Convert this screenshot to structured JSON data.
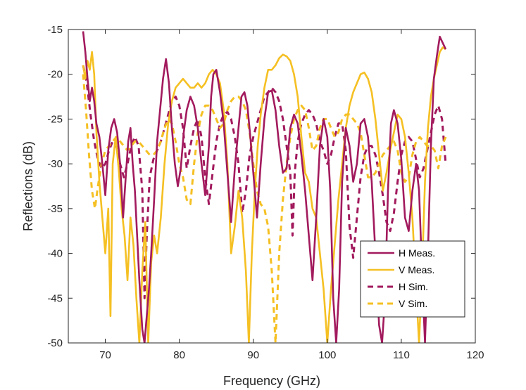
{
  "chart_data": {
    "type": "line",
    "title": "",
    "xlabel": "Frequency (GHz)",
    "ylabel": "Reflections (dB)",
    "xlim": [
      65,
      120
    ],
    "ylim": [
      -50,
      -15
    ],
    "xticks": [
      70,
      80,
      90,
      100,
      110,
      120
    ],
    "yticks": [
      -15,
      -20,
      -25,
      -30,
      -35,
      -40,
      -45,
      -50
    ],
    "grid": false,
    "legend_position": "bottom-right",
    "series": [
      {
        "name": "H Meas.",
        "color": "#a21a5d",
        "style": "solid",
        "x": [
          67.0,
          67.3,
          67.6,
          67.9,
          68.2,
          68.5,
          68.8,
          69.2,
          69.6,
          70.0,
          70.4,
          70.8,
          71.2,
          71.6,
          72.0,
          72.4,
          72.8,
          73.1,
          73.4,
          73.7,
          74.0,
          74.3,
          74.6,
          75.0,
          75.3,
          75.6,
          75.9,
          76.2,
          76.6,
          77.0,
          77.4,
          77.8,
          78.2,
          78.6,
          79.0,
          79.4,
          79.8,
          80.2,
          80.6,
          81.0,
          81.5,
          82.0,
          82.5,
          83.0,
          83.5,
          84.0,
          84.3,
          84.6,
          85.0,
          85.5,
          86.0,
          86.5,
          87.0,
          87.5,
          88.0,
          88.4,
          88.8,
          89.2,
          89.6,
          90.0,
          90.5,
          91.0,
          91.5,
          92.0,
          92.5,
          93.0,
          93.5,
          94.0,
          94.5,
          95.0,
          95.5,
          96.0,
          96.5,
          97.0,
          97.5,
          98.0,
          98.5,
          99.0,
          99.5,
          100.0,
          100.4,
          100.8,
          101.2,
          101.6,
          102.0,
          102.5,
          103.0,
          103.5,
          104.0,
          104.5,
          105.0,
          105.5,
          106.0,
          106.5,
          107.0,
          107.4,
          107.8,
          108.2,
          108.6,
          109.0,
          109.5,
          110.0,
          110.5,
          111.0,
          111.5,
          112.0,
          112.4,
          112.8,
          113.2,
          113.6,
          114.0,
          114.4,
          114.8,
          115.2,
          115.6,
          116.0
        ],
        "y": [
          -15.2,
          -17.5,
          -20.5,
          -23.0,
          -21.5,
          -23.0,
          -25.5,
          -27.0,
          -30.0,
          -33.5,
          -28.5,
          -26.0,
          -25.0,
          -26.5,
          -30.0,
          -36.0,
          -31.0,
          -27.5,
          -26.0,
          -30.0,
          -33.0,
          -38.0,
          -43.0,
          -48.5,
          -50.0,
          -47.0,
          -44.0,
          -40.0,
          -34.0,
          -27.5,
          -24.0,
          -20.5,
          -18.3,
          -21.0,
          -26.0,
          -30.0,
          -32.5,
          -30.5,
          -26.5,
          -24.0,
          -22.5,
          -23.5,
          -26.0,
          -30.0,
          -33.5,
          -28.0,
          -22.5,
          -20.0,
          -19.5,
          -22.0,
          -25.5,
          -31.0,
          -36.5,
          -30.5,
          -26.0,
          -22.5,
          -22.0,
          -23.5,
          -27.0,
          -31.0,
          -36.0,
          -30.0,
          -25.0,
          -22.0,
          -21.8,
          -24.0,
          -28.0,
          -31.0,
          -30.5,
          -26.0,
          -24.5,
          -25.5,
          -29.0,
          -33.0,
          -38.0,
          -43.0,
          -36.0,
          -28.0,
          -25.0,
          -27.0,
          -33.0,
          -45.0,
          -50.0,
          -44.0,
          -32.0,
          -26.0,
          -28.0,
          -32.0,
          -30.0,
          -25.5,
          -25.0,
          -27.0,
          -32.0,
          -40.0,
          -48.0,
          -50.0,
          -45.0,
          -33.0,
          -25.5,
          -24.0,
          -25.5,
          -29.5,
          -36.0,
          -37.5,
          -33.0,
          -30.0,
          -33.0,
          -42.0,
          -50.0,
          -40.0,
          -28.0,
          -20.5,
          -18.0,
          -15.8,
          -16.5,
          -17.2
        ]
      },
      {
        "name": "V Meas.",
        "color": "#f5c023",
        "style": "solid",
        "x": [
          67.0,
          67.3,
          67.6,
          67.9,
          68.2,
          68.5,
          68.8,
          69.2,
          69.6,
          70.0,
          70.4,
          70.7,
          71.0,
          71.4,
          71.8,
          72.2,
          72.6,
          73.0,
          73.4,
          73.8,
          74.2,
          74.6,
          75.0,
          75.4,
          75.8,
          76.2,
          76.6,
          77.0,
          77.5,
          78.0,
          78.5,
          79.0,
          79.5,
          80.0,
          80.5,
          81.0,
          81.5,
          82.0,
          82.5,
          83.0,
          83.5,
          84.0,
          84.5,
          85.0,
          85.5,
          86.0,
          86.5,
          87.0,
          87.5,
          88.0,
          88.5,
          89.0,
          89.4,
          89.8,
          90.2,
          90.6,
          91.0,
          91.5,
          92.0,
          92.5,
          93.0,
          93.5,
          94.0,
          94.5,
          95.0,
          95.5,
          96.0,
          96.5,
          97.0,
          97.5,
          98.0,
          98.5,
          99.0,
          99.5,
          100.0,
          100.5,
          101.0,
          101.5,
          102.0,
          102.5,
          103.0,
          103.5,
          104.0,
          104.5,
          105.0,
          105.5,
          106.0,
          106.5,
          107.0,
          107.5,
          108.0,
          108.5,
          109.0,
          109.5,
          110.0,
          110.5,
          111.0,
          111.5,
          112.0,
          112.4,
          112.8,
          113.2,
          113.6,
          114.0,
          114.4,
          114.8,
          115.2,
          115.6,
          116.0
        ],
        "y": [
          -19.0,
          -20.5,
          -18.5,
          -19.5,
          -17.5,
          -20.0,
          -26.5,
          -32.0,
          -36.0,
          -40.0,
          -35.0,
          -47.0,
          -30.0,
          -27.0,
          -30.5,
          -35.0,
          -38.0,
          -43.0,
          -36.0,
          -39.0,
          -45.0,
          -50.0,
          -42.0,
          -36.5,
          -50.0,
          -41.0,
          -38.0,
          -40.0,
          -36.0,
          -30.0,
          -25.5,
          -23.0,
          -21.5,
          -21.0,
          -20.5,
          -21.0,
          -21.5,
          -21.5,
          -21.0,
          -21.5,
          -21.0,
          -20.0,
          -19.5,
          -20.0,
          -21.0,
          -24.0,
          -30.0,
          -40.0,
          -37.0,
          -33.0,
          -36.0,
          -42.0,
          -50.0,
          -40.0,
          -33.0,
          -28.0,
          -24.5,
          -21.5,
          -19.5,
          -19.5,
          -19.0,
          -18.2,
          -17.8,
          -18.0,
          -18.5,
          -20.0,
          -22.5,
          -27.0,
          -31.0,
          -32.0,
          -35.0,
          -36.0,
          -40.0,
          -44.0,
          -50.0,
          -44.0,
          -39.0,
          -34.0,
          -30.0,
          -26.0,
          -23.5,
          -22.0,
          -21.0,
          -20.0,
          -19.8,
          -20.5,
          -22.0,
          -25.0,
          -29.0,
          -33.0,
          -31.0,
          -28.5,
          -26.5,
          -24.5,
          -25.0,
          -27.0,
          -31.0,
          -36.0,
          -44.0,
          -50.0,
          -42.0,
          -32.0,
          -26.0,
          -22.5,
          -20.5,
          -19.0,
          -17.5,
          -17.0,
          -17.2
        ]
      },
      {
        "name": "H Sim.",
        "color": "#a21a5d",
        "style": "dashed",
        "x": [
          67.0,
          67.5,
          68.0,
          68.5,
          69.0,
          69.5,
          70.0,
          70.5,
          71.0,
          71.5,
          72.0,
          72.5,
          73.0,
          73.5,
          74.0,
          74.5,
          75.0,
          75.3,
          75.6,
          76.0,
          76.5,
          77.0,
          77.5,
          78.0,
          78.5,
          79.0,
          79.5,
          80.0,
          80.5,
          81.0,
          81.5,
          82.0,
          82.5,
          83.0,
          83.5,
          84.0,
          84.5,
          85.0,
          85.5,
          86.0,
          86.5,
          87.0,
          87.5,
          88.0,
          88.5,
          89.0,
          89.5,
          90.0,
          90.5,
          91.0,
          91.5,
          92.0,
          92.5,
          93.0,
          93.5,
          94.0,
          94.5,
          95.0,
          95.3,
          95.6,
          96.0,
          96.5,
          97.0,
          97.5,
          98.0,
          98.5,
          99.0,
          99.5,
          100.0,
          100.5,
          101.0,
          101.5,
          102.0,
          102.5,
          103.0,
          103.5,
          104.0,
          104.5,
          105.0,
          105.5,
          106.0,
          106.5,
          107.0,
          107.5,
          108.0,
          108.5,
          109.0,
          109.5,
          110.0,
          110.5,
          111.0,
          111.5,
          112.0,
          112.5,
          113.0,
          113.5,
          114.0,
          114.5,
          115.0,
          115.5,
          116.0
        ],
        "y": [
          -19.0,
          -21.0,
          -24.5,
          -27.5,
          -29.5,
          -30.5,
          -30.0,
          -28.5,
          -27.5,
          -28.0,
          -30.0,
          -31.5,
          -30.0,
          -28.0,
          -27.0,
          -28.0,
          -33.0,
          -45.0,
          -38.0,
          -31.5,
          -29.5,
          -28.5,
          -27.5,
          -26.0,
          -24.5,
          -23.0,
          -22.5,
          -23.5,
          -26.0,
          -30.5,
          -28.0,
          -26.0,
          -25.0,
          -27.0,
          -31.5,
          -34.5,
          -31.0,
          -27.5,
          -25.5,
          -24.5,
          -24.2,
          -25.0,
          -27.0,
          -30.0,
          -35.5,
          -33.0,
          -29.0,
          -27.0,
          -25.5,
          -24.0,
          -22.5,
          -22.0,
          -21.5,
          -22.0,
          -23.0,
          -25.0,
          -28.0,
          -31.0,
          -38.0,
          -31.0,
          -27.5,
          -25.5,
          -24.5,
          -24.0,
          -24.5,
          -25.5,
          -27.5,
          -28.5,
          -30.0,
          -29.0,
          -27.0,
          -25.5,
          -25.5,
          -28.5,
          -37.0,
          -40.5,
          -36.0,
          -31.5,
          -29.0,
          -28.0,
          -28.0,
          -29.0,
          -31.0,
          -33.5,
          -36.5,
          -37.5,
          -35.5,
          -32.0,
          -29.0,
          -27.5,
          -27.0,
          -27.5,
          -29.5,
          -31.5,
          -30.5,
          -28.5,
          -26.5,
          -24.5,
          -23.5,
          -25.0,
          -30.0
        ]
      },
      {
        "name": "V Sim.",
        "color": "#f5c023",
        "style": "dashed",
        "x": [
          67.0,
          67.4,
          67.8,
          68.2,
          68.6,
          69.0,
          69.5,
          70.0,
          70.5,
          71.0,
          71.5,
          72.0,
          72.5,
          73.0,
          73.5,
          74.0,
          74.5,
          75.0,
          75.5,
          76.0,
          76.5,
          77.0,
          77.5,
          78.0,
          78.5,
          79.0,
          79.5,
          80.0,
          80.5,
          81.0,
          81.5,
          82.0,
          82.5,
          83.0,
          83.5,
          84.0,
          84.5,
          85.0,
          85.5,
          86.0,
          86.5,
          87.0,
          87.5,
          88.0,
          88.5,
          89.0,
          89.5,
          90.0,
          90.5,
          91.0,
          91.5,
          92.0,
          92.5,
          93.0,
          93.5,
          94.0,
          94.5,
          95.0,
          95.5,
          96.0,
          96.5,
          97.0,
          97.5,
          98.0,
          98.5,
          99.0,
          99.5,
          100.0,
          100.5,
          101.0,
          101.5,
          102.0,
          102.5,
          103.0,
          103.5,
          104.0,
          104.5,
          105.0,
          105.5,
          106.0,
          106.5,
          107.0,
          107.5,
          108.0,
          108.5,
          109.0,
          109.5,
          110.0,
          110.5,
          111.0,
          111.5,
          112.0,
          112.5,
          113.0,
          113.5,
          114.0,
          114.5,
          115.0,
          115.5,
          116.0
        ],
        "y": [
          -20.0,
          -24.0,
          -29.0,
          -33.0,
          -35.0,
          -32.5,
          -30.0,
          -28.5,
          -28.0,
          -27.5,
          -27.0,
          -27.5,
          -28.0,
          -28.5,
          -28.0,
          -27.5,
          -27.5,
          -28.0,
          -28.5,
          -29.0,
          -29.0,
          -28.5,
          -27.5,
          -26.0,
          -25.0,
          -25.5,
          -27.5,
          -30.0,
          -31.5,
          -34.0,
          -34.5,
          -30.0,
          -26.5,
          -24.5,
          -23.5,
          -23.5,
          -24.0,
          -25.0,
          -26.0,
          -25.5,
          -24.0,
          -23.0,
          -22.5,
          -22.5,
          -23.0,
          -24.0,
          -26.5,
          -30.0,
          -33.0,
          -34.5,
          -35.0,
          -37.0,
          -42.0,
          -50.0,
          -40.0,
          -34.0,
          -30.0,
          -27.0,
          -25.0,
          -24.0,
          -23.5,
          -24.0,
          -26.0,
          -28.5,
          -28.0,
          -26.0,
          -25.0,
          -25.0,
          -26.0,
          -27.0,
          -26.5,
          -25.0,
          -24.5,
          -24.5,
          -25.0,
          -25.5,
          -26.5,
          -29.0,
          -31.5,
          -31.5,
          -31.0,
          -30.0,
          -29.0,
          -28.5,
          -28.0,
          -27.5,
          -28.5,
          -31.0,
          -32.0,
          -31.5,
          -29.0,
          -27.5,
          -27.0,
          -27.5,
          -28.0,
          -28.0,
          -28.5,
          -30.5,
          -28.0,
          -27.0
        ]
      }
    ]
  }
}
